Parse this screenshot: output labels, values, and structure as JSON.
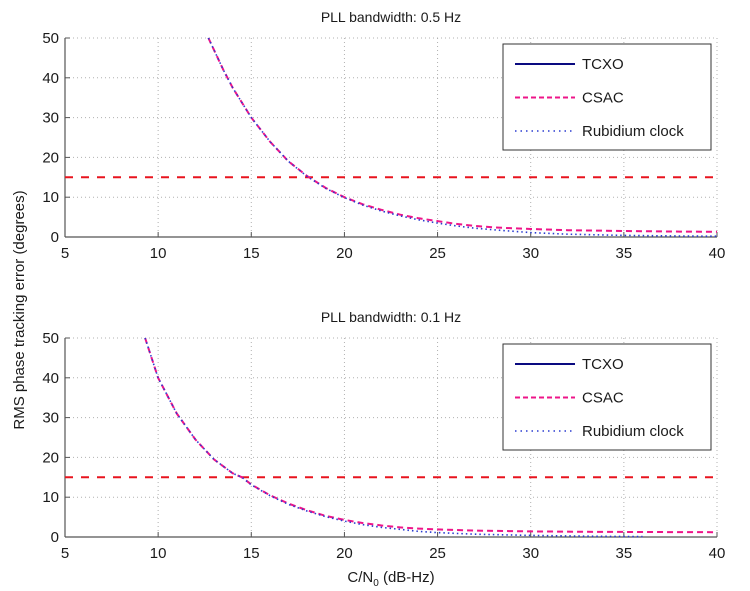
{
  "figure": {
    "ylabel": "RMS phase tracking error (degrees)",
    "xlabel_main": "C/N",
    "xlabel_sub": "0",
    "xlabel_rest": " (dB-Hz)"
  },
  "chart_data": [
    {
      "type": "line",
      "title": "PLL bandwidth: 0.5 Hz",
      "xlabel": "C/N0 (dB-Hz)",
      "ylabel": "RMS phase tracking error (degrees)",
      "xlim": [
        5,
        40
      ],
      "ylim": [
        0,
        50
      ],
      "xticks": [
        5,
        10,
        15,
        20,
        25,
        30,
        35,
        40
      ],
      "yticks": [
        0,
        10,
        20,
        30,
        40,
        50
      ],
      "grid": true,
      "legend_position": "top-right",
      "threshold": {
        "y": 15,
        "color": "#e8141e",
        "style": "dashed"
      },
      "series": [
        {
          "name": "TCXO",
          "color": "#0a0a80",
          "style": "solid",
          "x": [],
          "y": []
        },
        {
          "name": "CSAC",
          "color": "#ee1589",
          "style": "dashed",
          "x": [
            12.7,
            13.5,
            14,
            15,
            16,
            17,
            18,
            19,
            20,
            21,
            22,
            23,
            24,
            25,
            26,
            27,
            28,
            30,
            32,
            35,
            38,
            40
          ],
          "y": [
            50,
            42,
            37.5,
            30,
            24,
            19,
            15.3,
            12.3,
            10,
            8.2,
            6.8,
            5.6,
            4.7,
            4.0,
            3.3,
            2.8,
            2.4,
            2.0,
            1.7,
            1.5,
            1.35,
            1.3
          ]
        },
        {
          "name": "Rubidium clock",
          "color": "#2a3bd0",
          "style": "dotted",
          "x": [
            12.7,
            13.5,
            14,
            15,
            16,
            17,
            18,
            19,
            20,
            21,
            22,
            23,
            24,
            25,
            26,
            27,
            28,
            30,
            32,
            35,
            38,
            40
          ],
          "y": [
            50,
            42,
            37.5,
            30,
            24,
            19,
            15.2,
            12.2,
            9.9,
            8.0,
            6.5,
            5.3,
            4.3,
            3.5,
            2.8,
            2.2,
            1.8,
            1.1,
            0.7,
            0.4,
            0.25,
            0.2
          ]
        }
      ],
      "legend": [
        "TCXO",
        "CSAC",
        "Rubidium clock"
      ]
    },
    {
      "type": "line",
      "title": "PLL bandwidth: 0.1 Hz",
      "xlabel": "C/N0 (dB-Hz)",
      "ylabel": "RMS phase tracking error (degrees)",
      "xlim": [
        5,
        40
      ],
      "ylim": [
        0,
        50
      ],
      "xticks": [
        5,
        10,
        15,
        20,
        25,
        30,
        35,
        40
      ],
      "yticks": [
        0,
        10,
        20,
        30,
        40,
        50
      ],
      "grid": true,
      "legend_position": "top-right",
      "threshold": {
        "y": 15,
        "color": "#e8141e",
        "style": "dashed"
      },
      "series": [
        {
          "name": "TCXO",
          "color": "#0a0a80",
          "style": "solid",
          "x": [],
          "y": []
        },
        {
          "name": "CSAC",
          "color": "#ee1589",
          "style": "dashed",
          "x": [
            9.3,
            10,
            11,
            12,
            13,
            14,
            14.5,
            15,
            16,
            17,
            18,
            19,
            20,
            21,
            22,
            23,
            24,
            25,
            27,
            30,
            33,
            36,
            40
          ],
          "y": [
            50,
            40,
            31,
            24.5,
            19.5,
            16,
            15,
            13.2,
            10.5,
            8.4,
            6.7,
            5.3,
            4.3,
            3.5,
            2.9,
            2.4,
            2.1,
            1.9,
            1.6,
            1.4,
            1.3,
            1.25,
            1.2
          ]
        },
        {
          "name": "Rubidium clock",
          "color": "#2a3bd0",
          "style": "dotted",
          "x": [
            9.3,
            10,
            11,
            12,
            13,
            14,
            14.5,
            15,
            16,
            17,
            18,
            19,
            20,
            21,
            22,
            23,
            24,
            25,
            27,
            30,
            33,
            36
          ],
          "y": [
            50,
            40,
            31,
            24.5,
            19.5,
            16,
            15,
            13.1,
            10.4,
            8.2,
            6.5,
            5.1,
            4.0,
            3.1,
            2.4,
            1.9,
            1.4,
            1.1,
            0.7,
            0.4,
            0.2,
            0.1
          ]
        }
      ],
      "legend": [
        "TCXO",
        "CSAC",
        "Rubidium clock"
      ]
    }
  ]
}
